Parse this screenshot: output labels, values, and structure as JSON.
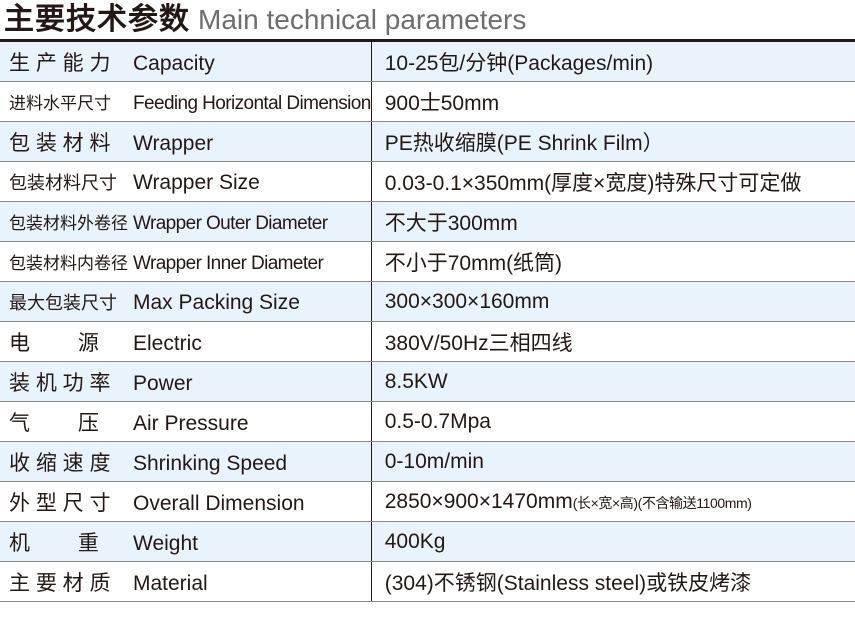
{
  "title": {
    "zh": "主要技术参数",
    "en": "Main technical parameters"
  },
  "rows": [
    {
      "zh": "生 产 能 力",
      "en": "Capacity",
      "value": "10-25包/分钟(Packages/min)"
    },
    {
      "zh": "进料水平尺寸",
      "en": "Feeding Horizontal Dimension",
      "value": "900士50mm"
    },
    {
      "zh": "包 装 材 料",
      "en": "Wrapper",
      "value": "PE热收缩膜(PE Shrink Film）"
    },
    {
      "zh": "包装材料尺寸",
      "en": "Wrapper Size",
      "value": "0.03-0.1×350mm(厚度×宽度)特殊尺寸可定做"
    },
    {
      "zh": "包装材料外卷径",
      "en": "Wrapper Outer Diameter",
      "value": "不大于300mm"
    },
    {
      "zh": "包装材料内卷径",
      "en": "Wrapper Inner Diameter",
      "value": "不小于70mm(纸筒)"
    },
    {
      "zh": "最大包装尺寸",
      "en": "Max Packing Size",
      "value": "300×300×160mm"
    },
    {
      "zh": "电　　 源",
      "en": "Electric",
      "value": "380V/50Hz三相四线"
    },
    {
      "zh": "装 机 功 率",
      "en": "Power",
      "value": "8.5KW"
    },
    {
      "zh": "气　　 压",
      "en": "Air Pressure",
      "value": "0.5-0.7Mpa"
    },
    {
      "zh": "收 缩 速 度",
      "en": "Shrinking Speed",
      "value": "0-10m/min"
    },
    {
      "zh": "外 型 尺 寸",
      "en": "Overall Dimension",
      "value": "2850×900×1470mm",
      "value_note": "(长×宽×高)(不含输送1100mm)"
    },
    {
      "zh": "机　　 重",
      "en": "Weight",
      "value": "400Kg"
    },
    {
      "zh": "主 要 材 质",
      "en": "Material",
      "value": "(304)不锈钢(Stainless steel)或铁皮烤漆"
    }
  ]
}
